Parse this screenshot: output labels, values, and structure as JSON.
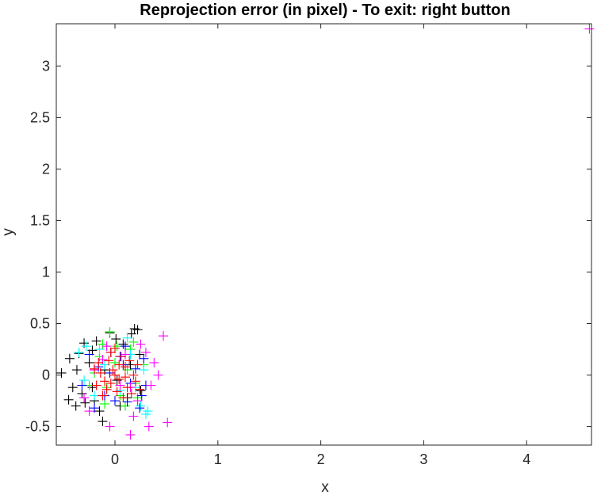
{
  "chart_data": {
    "type": "scatter",
    "title": "Reprojection error (in pixel) - To exit: right button",
    "xlabel": "x",
    "ylabel": "y",
    "xlim": [
      -0.57,
      4.63
    ],
    "ylim": [
      -0.68,
      3.41
    ],
    "xticks": [
      "0",
      "1",
      "2",
      "3",
      "4"
    ],
    "xtick_values": [
      0,
      1,
      2,
      3,
      4
    ],
    "yticks": [
      "-0.5",
      "0",
      "0.5",
      "1",
      "1.5",
      "2",
      "2.5",
      "3"
    ],
    "ytick_values": [
      -0.5,
      0,
      0.5,
      1,
      1.5,
      2,
      2.5,
      3
    ],
    "grid": false,
    "box": true,
    "marker": "+",
    "series": [
      {
        "color": "#000000",
        "points": [
          [
            -0.52,
            0.02
          ],
          [
            -0.44,
            0.16
          ],
          [
            -0.37,
            0.05
          ],
          [
            -0.41,
            -0.12
          ],
          [
            -0.32,
            -0.18
          ],
          [
            -0.29,
            -0.27
          ],
          [
            -0.22,
            0.24
          ],
          [
            -0.18,
            0.33
          ],
          [
            0.01,
            0.35
          ],
          [
            0.19,
            0.45
          ],
          [
            0.22,
            0.44
          ],
          [
            0.16,
            0.4
          ],
          [
            -0.12,
            -0.45
          ],
          [
            -0.3,
            0.31
          ],
          [
            -0.45,
            -0.24
          ],
          [
            -0.22,
            -0.12
          ],
          [
            0.05,
            -0.3
          ],
          [
            0.15,
            0.1
          ],
          [
            -0.1,
            0.05
          ],
          [
            0.02,
            -0.05
          ],
          [
            -0.25,
            0.12
          ],
          [
            -0.35,
            0.21
          ],
          [
            0.12,
            -0.22
          ],
          [
            0.24,
            0.2
          ],
          [
            -0.05,
            0.41
          ],
          [
            -0.15,
            -0.35
          ],
          [
            -0.38,
            -0.3
          ],
          [
            0.08,
            0.3
          ],
          [
            0.25,
            -0.15
          ],
          [
            -0.2,
            -0.25
          ]
        ]
      },
      {
        "color": "#00ff00",
        "points": [
          [
            -0.05,
            0.42
          ],
          [
            0.02,
            0.28
          ],
          [
            -0.15,
            0.18
          ],
          [
            0.12,
            0.05
          ],
          [
            -0.08,
            -0.12
          ],
          [
            0.2,
            -0.08
          ],
          [
            0.05,
            -0.2
          ],
          [
            -0.2,
            0.02
          ],
          [
            0.15,
            0.25
          ],
          [
            -0.12,
            0.3
          ],
          [
            0.1,
            -0.3
          ],
          [
            0.28,
            0.1
          ],
          [
            -0.25,
            -0.1
          ],
          [
            0.22,
            -0.22
          ],
          [
            0.0,
            0.12
          ],
          [
            -0.1,
            -0.28
          ],
          [
            0.18,
            0.32
          ]
        ]
      },
      {
        "color": "#00ffff",
        "points": [
          [
            -0.35,
            0.22
          ],
          [
            -0.28,
            0.28
          ],
          [
            0.25,
            -0.3
          ],
          [
            0.3,
            -0.38
          ],
          [
            0.32,
            -0.35
          ],
          [
            -0.2,
            -0.2
          ],
          [
            0.15,
            0.2
          ],
          [
            -0.1,
            0.1
          ],
          [
            0.05,
            -0.15
          ],
          [
            0.28,
            0.05
          ],
          [
            -0.3,
            -0.05
          ],
          [
            0.12,
            0.36
          ],
          [
            -0.15,
            0.25
          ],
          [
            0.2,
            -0.12
          ]
        ]
      },
      {
        "color": "#0000ff",
        "points": [
          [
            0.24,
            -0.32
          ],
          [
            -0.04,
            0.22
          ],
          [
            0.3,
            -0.1
          ],
          [
            0.12,
            -0.26
          ],
          [
            -0.16,
            0.08
          ],
          [
            0.2,
            0.06
          ],
          [
            0.05,
            0.18
          ],
          [
            -0.25,
            0.2
          ],
          [
            0.15,
            -0.08
          ],
          [
            0.0,
            -0.25
          ],
          [
            -0.32,
            -0.1
          ],
          [
            0.28,
            0.16
          ],
          [
            -0.1,
            -0.2
          ],
          [
            0.1,
            0.28
          ],
          [
            -0.2,
            -0.32
          ],
          [
            0.26,
            -0.2
          ],
          [
            -0.05,
            0.02
          ],
          [
            0.08,
            0.1
          ]
        ]
      },
      {
        "color": "#ff00ff",
        "points": [
          [
            4.61,
            3.36
          ],
          [
            0.47,
            0.38
          ],
          [
            0.51,
            -0.46
          ],
          [
            0.33,
            -0.5
          ],
          [
            0.15,
            -0.58
          ],
          [
            -0.05,
            -0.5
          ],
          [
            0.42,
            0.0
          ],
          [
            0.25,
            0.3
          ],
          [
            -0.12,
            0.15
          ],
          [
            0.18,
            -0.4
          ],
          [
            -0.25,
            -0.35
          ],
          [
            0.35,
            -0.1
          ],
          [
            -0.2,
            0.05
          ],
          [
            0.1,
            0.2
          ],
          [
            0.3,
            0.22
          ],
          [
            -0.3,
            -0.22
          ],
          [
            0.05,
            -0.1
          ],
          [
            0.22,
            -0.25
          ],
          [
            -0.08,
            0.28
          ],
          [
            0.38,
            0.12
          ],
          [
            0.15,
            -0.12
          ]
        ]
      },
      {
        "color": "#ff0000",
        "points": [
          [
            0.0,
            0.0
          ],
          [
            -0.02,
            0.05
          ],
          [
            0.04,
            -0.04
          ],
          [
            0.1,
            0.08
          ],
          [
            -0.1,
            -0.06
          ],
          [
            0.12,
            -0.12
          ],
          [
            -0.06,
            0.14
          ],
          [
            0.06,
            0.18
          ],
          [
            -0.14,
            0.02
          ],
          [
            0.18,
            0.0
          ],
          [
            0.02,
            -0.16
          ],
          [
            -0.08,
            -0.14
          ],
          [
            0.14,
            0.14
          ],
          [
            -0.16,
            0.12
          ],
          [
            0.2,
            -0.06
          ],
          [
            -0.04,
            0.22
          ],
          [
            0.08,
            -0.22
          ],
          [
            -0.18,
            -0.1
          ],
          [
            0.22,
            0.1
          ],
          [
            -0.12,
            -0.2
          ],
          [
            0.16,
            -0.18
          ],
          [
            -0.2,
            0.06
          ],
          [
            0.04,
            0.1
          ],
          [
            -0.04,
            -0.08
          ],
          [
            0.1,
            -0.02
          ],
          [
            0.0,
            0.26
          ],
          [
            0.24,
            -0.14
          ]
        ]
      }
    ]
  }
}
